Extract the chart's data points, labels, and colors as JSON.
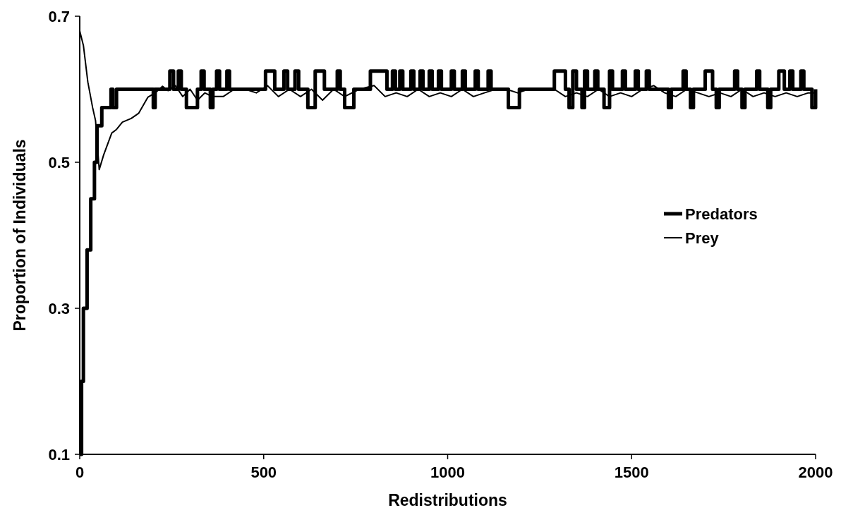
{
  "chart_data": {
    "type": "line",
    "xlabel": "Redistributions",
    "ylabel": "Proportion of Individuals",
    "xlim": [
      0,
      2000
    ],
    "xticks": [
      0,
      500,
      1000,
      1500,
      2000
    ],
    "ylim": [
      0.1,
      0.7
    ],
    "yticks": [
      0.1,
      0.3,
      0.5,
      0.7
    ],
    "legend": "right",
    "grid": false,
    "series": [
      {
        "name": "Predators",
        "type": "step",
        "color": "#000000",
        "x": [
          0,
          5,
          10,
          20,
          30,
          40,
          47,
          60,
          85,
          90,
          100,
          200,
          205,
          245,
          255,
          268,
          276,
          290,
          320,
          330,
          338,
          355,
          362,
          372,
          380,
          400,
          407,
          505,
          530,
          555,
          565,
          585,
          595,
          620,
          640,
          665,
          700,
          708,
          720,
          745,
          790,
          835,
          850,
          858,
          870,
          878,
          900,
          908,
          925,
          933,
          950,
          958,
          975,
          983,
          1010,
          1018,
          1040,
          1048,
          1075,
          1083,
          1110,
          1118,
          1165,
          1195,
          1290,
          1320,
          1330,
          1340,
          1350,
          1365,
          1372,
          1380,
          1400,
          1408,
          1425,
          1440,
          1448,
          1475,
          1483,
          1510,
          1518,
          1540,
          1548,
          1600,
          1608,
          1640,
          1648,
          1660,
          1668,
          1700,
          1720,
          1730,
          1738,
          1780,
          1788,
          1800,
          1808,
          1840,
          1848,
          1870,
          1878,
          1900,
          1915,
          1930,
          1938,
          1960,
          1968,
          1990,
          2000
        ],
        "values": [
          0.1,
          0.2,
          0.3,
          0.38,
          0.45,
          0.5,
          0.55,
          0.575,
          0.6,
          0.575,
          0.6,
          0.575,
          0.6,
          0.625,
          0.6,
          0.625,
          0.6,
          0.575,
          0.6,
          0.625,
          0.6,
          0.575,
          0.6,
          0.625,
          0.6,
          0.625,
          0.6,
          0.625,
          0.6,
          0.625,
          0.6,
          0.625,
          0.6,
          0.575,
          0.625,
          0.6,
          0.625,
          0.6,
          0.575,
          0.6,
          0.625,
          0.6,
          0.625,
          0.6,
          0.625,
          0.6,
          0.625,
          0.6,
          0.625,
          0.6,
          0.625,
          0.6,
          0.625,
          0.6,
          0.625,
          0.6,
          0.625,
          0.6,
          0.625,
          0.6,
          0.625,
          0.6,
          0.575,
          0.6,
          0.625,
          0.6,
          0.575,
          0.625,
          0.6,
          0.575,
          0.625,
          0.6,
          0.625,
          0.6,
          0.575,
          0.625,
          0.6,
          0.625,
          0.6,
          0.625,
          0.6,
          0.625,
          0.6,
          0.575,
          0.6,
          0.625,
          0.6,
          0.575,
          0.6,
          0.625,
          0.6,
          0.575,
          0.6,
          0.625,
          0.6,
          0.575,
          0.6,
          0.625,
          0.6,
          0.575,
          0.6,
          0.625,
          0.6,
          0.625,
          0.6,
          0.625,
          0.6,
          0.575,
          0.6
        ]
      },
      {
        "name": "Prey",
        "type": "line",
        "color": "#000000",
        "x": [
          0,
          10,
          22,
          35,
          43,
          53,
          65,
          87,
          100,
          116,
          140,
          160,
          185,
          205,
          225,
          240,
          260,
          280,
          300,
          320,
          340,
          360,
          390,
          420,
          450,
          480,
          510,
          540,
          570,
          600,
          630,
          660,
          690,
          720,
          760,
          800,
          830,
          860,
          890,
          920,
          950,
          980,
          1010,
          1040,
          1070,
          1100,
          1130,
          1160,
          1190,
          1220,
          1260,
          1290,
          1320,
          1350,
          1380,
          1410,
          1440,
          1470,
          1500,
          1530,
          1560,
          1590,
          1620,
          1650,
          1680,
          1710,
          1740,
          1770,
          1800,
          1830,
          1860,
          1890,
          1920,
          1950,
          1980,
          2000
        ],
        "values": [
          0.68,
          0.66,
          0.61,
          0.575,
          0.557,
          0.49,
          0.51,
          0.54,
          0.545,
          0.555,
          0.56,
          0.567,
          0.589,
          0.595,
          0.604,
          0.598,
          0.605,
          0.59,
          0.6,
          0.585,
          0.595,
          0.59,
          0.59,
          0.6,
          0.6,
          0.595,
          0.605,
          0.59,
          0.6,
          0.59,
          0.6,
          0.585,
          0.6,
          0.59,
          0.6,
          0.605,
          0.59,
          0.595,
          0.59,
          0.6,
          0.59,
          0.595,
          0.59,
          0.6,
          0.59,
          0.595,
          0.6,
          0.6,
          0.595,
          0.6,
          0.6,
          0.6,
          0.59,
          0.595,
          0.59,
          0.6,
          0.59,
          0.595,
          0.59,
          0.6,
          0.605,
          0.595,
          0.59,
          0.6,
          0.595,
          0.59,
          0.595,
          0.59,
          0.6,
          0.59,
          0.595,
          0.59,
          0.595,
          0.59,
          0.595,
          0.595
        ]
      }
    ]
  }
}
